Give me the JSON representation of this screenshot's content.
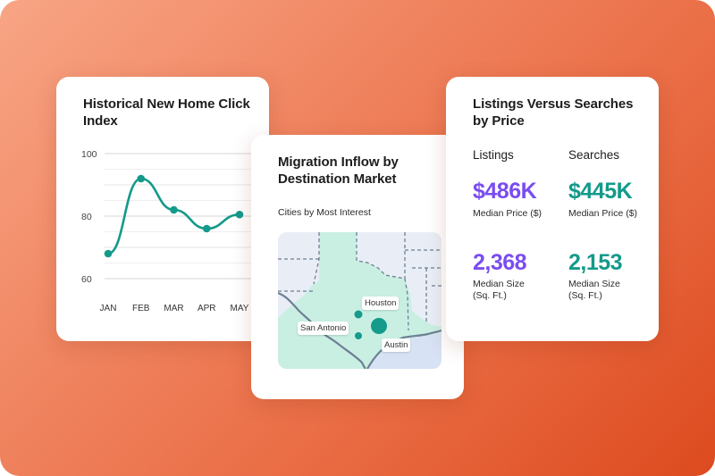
{
  "colors": {
    "accent_teal": "#139a8a",
    "accent_purple": "#7a4cf0",
    "background_gradient_start": "#f8a585",
    "background_gradient_end": "#dd4a1f"
  },
  "click_index_card": {
    "title": "Historical New Home Click Index"
  },
  "migration_card": {
    "title": "Migration Inflow by Destination Market",
    "subtitle": "Cities by Most Interest",
    "cities": [
      "Houston",
      "San Antonio",
      "Austin"
    ]
  },
  "listings_card": {
    "title": "Listings Versus Searches by Price",
    "listings": {
      "heading": "Listings",
      "median_price": "$486K",
      "median_price_label": "Median Price ($)",
      "median_size": "2,368",
      "median_size_label": "Median Size (Sq. Ft.)"
    },
    "searches": {
      "heading": "Searches",
      "median_price": "$445K",
      "median_price_label": "Median Price ($)",
      "median_size": "2,153",
      "median_size_label": "Median Size (Sq. Ft.)"
    }
  },
  "chart_data": {
    "type": "line",
    "title": "Historical New Home Click Index",
    "categories": [
      "JAN",
      "FEB",
      "MAR",
      "APR",
      "MAY"
    ],
    "series": [
      {
        "x": [
          "JAN",
          "FEB",
          "MAR",
          "APR",
          "MAY"
        ],
        "values": [
          68,
          92,
          82,
          76,
          80.5
        ]
      }
    ],
    "yticks": [
      60,
      80,
      100
    ],
    "ylim": [
      60,
      100
    ],
    "grid": true,
    "color": "#139a8a"
  }
}
